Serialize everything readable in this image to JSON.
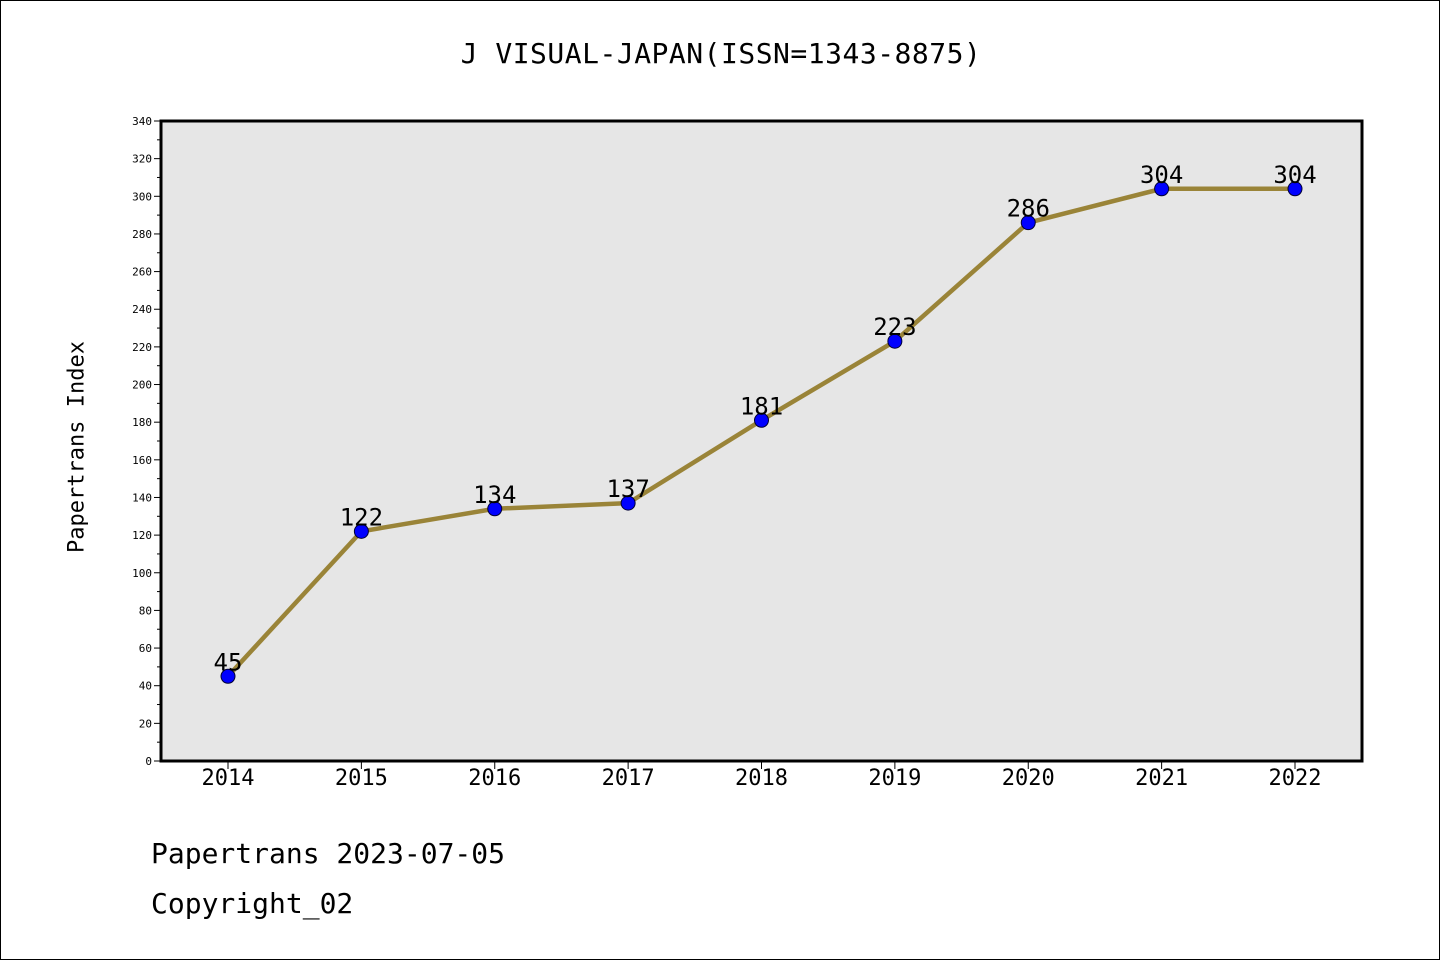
{
  "chart_data": {
    "type": "line",
    "title": "J VISUAL-JAPAN(ISSN=1343-8875)",
    "ylabel": "Papertrans Index",
    "xlabel": "",
    "categories": [
      "2014",
      "2015",
      "2016",
      "2017",
      "2018",
      "2019",
      "2020",
      "2021",
      "2022"
    ],
    "series": [
      {
        "values": [
          45,
          122,
          134,
          137,
          181,
          223,
          286,
          304,
          304
        ]
      }
    ],
    "ylim": [
      0,
      340
    ],
    "yticks": [
      0,
      20,
      40,
      60,
      80,
      100,
      120,
      140,
      160,
      180,
      200,
      220,
      240,
      260,
      280,
      300,
      320,
      340
    ],
    "grid": false,
    "colors": {
      "line": "#9a8438",
      "marker": "#0000ff",
      "plot_background": "#e6e6e6"
    }
  },
  "footer": {
    "date_text": "Papertrans 2023-07-05",
    "copyright_text": "Copyright_02"
  }
}
